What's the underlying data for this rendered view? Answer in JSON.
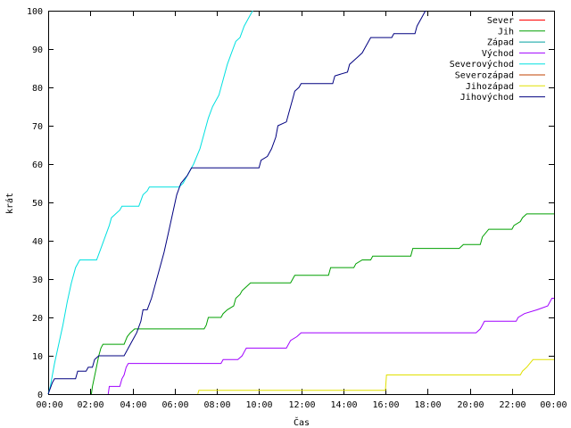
{
  "chart_data": {
    "type": "line",
    "title": "",
    "xlabel": "Čas",
    "ylabel": "krát",
    "xlim": [
      0,
      24
    ],
    "ylim": [
      0,
      100
    ],
    "x_tick_labels": [
      "00:00",
      "02:00",
      "04:00",
      "06:00",
      "08:00",
      "10:00",
      "12:00",
      "14:00",
      "16:00",
      "18:00",
      "20:00",
      "22:00",
      "00:00"
    ],
    "y_ticks": [
      0,
      10,
      20,
      30,
      40,
      50,
      60,
      70,
      80,
      90,
      100
    ],
    "grid": false,
    "legend_position": "top-right",
    "series": [
      {
        "name": "Sever",
        "color": "#ff0000",
        "points": []
      },
      {
        "name": "Jih",
        "color": "#00a000",
        "points": [
          [
            2.05,
            0
          ],
          [
            2.1,
            2
          ],
          [
            2.25,
            6
          ],
          [
            2.4,
            10
          ],
          [
            2.5,
            12
          ],
          [
            2.6,
            13
          ],
          [
            3.6,
            13
          ],
          [
            3.75,
            15
          ],
          [
            3.9,
            16
          ],
          [
            4.1,
            17
          ],
          [
            7.4,
            17
          ],
          [
            7.5,
            18
          ],
          [
            7.6,
            20
          ],
          [
            8.2,
            20
          ],
          [
            8.3,
            21
          ],
          [
            8.5,
            22
          ],
          [
            8.8,
            23
          ],
          [
            8.9,
            25
          ],
          [
            9.1,
            26
          ],
          [
            9.2,
            27
          ],
          [
            9.4,
            28
          ],
          [
            9.6,
            29
          ],
          [
            11.5,
            29
          ],
          [
            11.7,
            31
          ],
          [
            13.3,
            31
          ],
          [
            13.4,
            33
          ],
          [
            14.5,
            33
          ],
          [
            14.6,
            34
          ],
          [
            14.9,
            35
          ],
          [
            15.3,
            35
          ],
          [
            15.4,
            36
          ],
          [
            17.2,
            36
          ],
          [
            17.3,
            38
          ],
          [
            19.5,
            38
          ],
          [
            19.7,
            39
          ],
          [
            20.5,
            39
          ],
          [
            20.6,
            41
          ],
          [
            20.9,
            43
          ],
          [
            22.0,
            43
          ],
          [
            22.1,
            44
          ],
          [
            22.4,
            45
          ],
          [
            22.5,
            46
          ],
          [
            22.7,
            47
          ],
          [
            24,
            47
          ]
        ]
      },
      {
        "name": "Západ",
        "color": "#00a0a0",
        "points": []
      },
      {
        "name": "Východ",
        "color": "#a000ff",
        "points": [
          [
            2.85,
            0
          ],
          [
            2.9,
            2
          ],
          [
            3.4,
            2
          ],
          [
            3.5,
            4
          ],
          [
            3.6,
            5
          ],
          [
            3.7,
            7
          ],
          [
            3.8,
            8
          ],
          [
            8.2,
            8
          ],
          [
            8.3,
            9
          ],
          [
            9.0,
            9
          ],
          [
            9.2,
            10
          ],
          [
            9.3,
            11
          ],
          [
            9.4,
            12
          ],
          [
            11.3,
            12
          ],
          [
            11.5,
            14
          ],
          [
            11.8,
            15
          ],
          [
            12.0,
            16
          ],
          [
            20.3,
            16
          ],
          [
            20.5,
            17
          ],
          [
            20.6,
            18
          ],
          [
            20.7,
            19
          ],
          [
            22.2,
            19
          ],
          [
            22.3,
            20
          ],
          [
            22.6,
            21
          ],
          [
            23.2,
            22
          ],
          [
            23.7,
            23
          ],
          [
            23.9,
            25
          ],
          [
            24,
            25
          ]
        ]
      },
      {
        "name": "Severovýchod",
        "color": "#00e0e0",
        "points": [
          [
            0,
            0
          ],
          [
            0.1,
            2
          ],
          [
            0.3,
            8
          ],
          [
            0.5,
            13
          ],
          [
            0.7,
            18
          ],
          [
            0.9,
            24
          ],
          [
            1.1,
            29
          ],
          [
            1.3,
            33
          ],
          [
            1.5,
            35
          ],
          [
            2.3,
            35
          ],
          [
            2.5,
            38
          ],
          [
            2.7,
            41
          ],
          [
            2.9,
            44
          ],
          [
            3.0,
            46
          ],
          [
            3.2,
            47
          ],
          [
            3.4,
            48
          ],
          [
            3.5,
            49
          ],
          [
            4.3,
            49
          ],
          [
            4.5,
            52
          ],
          [
            4.7,
            53
          ],
          [
            4.8,
            54
          ],
          [
            6.2,
            54
          ],
          [
            6.4,
            55
          ],
          [
            6.6,
            57
          ],
          [
            6.9,
            60
          ],
          [
            7.2,
            64
          ],
          [
            7.4,
            68
          ],
          [
            7.6,
            72
          ],
          [
            7.8,
            75
          ],
          [
            8.1,
            78
          ],
          [
            8.3,
            82
          ],
          [
            8.5,
            86
          ],
          [
            8.7,
            89
          ],
          [
            8.9,
            92
          ],
          [
            9.1,
            93
          ],
          [
            9.3,
            96
          ],
          [
            9.5,
            98
          ],
          [
            9.7,
            100
          ]
        ]
      },
      {
        "name": "Severozápad",
        "color": "#c04000",
        "points": []
      },
      {
        "name": "Jihozápad",
        "color": "#e0e000",
        "points": [
          [
            7.1,
            0
          ],
          [
            7.15,
            1
          ],
          [
            16.0,
            1
          ],
          [
            16.05,
            5
          ],
          [
            22.4,
            5
          ],
          [
            22.5,
            6
          ],
          [
            22.7,
            7
          ],
          [
            23.0,
            9
          ],
          [
            24,
            9
          ]
        ]
      },
      {
        "name": "Jihovýchod",
        "color": "#000080",
        "points": [
          [
            0,
            0
          ],
          [
            0.2,
            3
          ],
          [
            0.3,
            4
          ],
          [
            1.3,
            4
          ],
          [
            1.4,
            6
          ],
          [
            1.8,
            6
          ],
          [
            1.9,
            7
          ],
          [
            2.1,
            7
          ],
          [
            2.2,
            9
          ],
          [
            2.4,
            10
          ],
          [
            3.6,
            10
          ],
          [
            3.8,
            12
          ],
          [
            4.0,
            14
          ],
          [
            4.2,
            16
          ],
          [
            4.4,
            19
          ],
          [
            4.5,
            22
          ],
          [
            4.7,
            22
          ],
          [
            4.9,
            25
          ],
          [
            5.1,
            29
          ],
          [
            5.3,
            33
          ],
          [
            5.5,
            37
          ],
          [
            5.7,
            42
          ],
          [
            5.9,
            47
          ],
          [
            6.1,
            52
          ],
          [
            6.3,
            55
          ],
          [
            6.6,
            57
          ],
          [
            6.8,
            59
          ],
          [
            10.0,
            59
          ],
          [
            10.1,
            61
          ],
          [
            10.4,
            62
          ],
          [
            10.6,
            64
          ],
          [
            10.8,
            67
          ],
          [
            10.9,
            70
          ],
          [
            11.3,
            71
          ],
          [
            11.4,
            73
          ],
          [
            11.5,
            75
          ],
          [
            11.6,
            77
          ],
          [
            11.7,
            79
          ],
          [
            11.9,
            80
          ],
          [
            12.0,
            81
          ],
          [
            13.5,
            81
          ],
          [
            13.6,
            83
          ],
          [
            14.2,
            84
          ],
          [
            14.3,
            86
          ],
          [
            14.5,
            87
          ],
          [
            14.7,
            88
          ],
          [
            14.9,
            89
          ],
          [
            15.1,
            91
          ],
          [
            15.3,
            93
          ],
          [
            16.3,
            93
          ],
          [
            16.4,
            94
          ],
          [
            17.4,
            94
          ],
          [
            17.5,
            96
          ],
          [
            17.7,
            98
          ],
          [
            17.9,
            100
          ]
        ]
      }
    ]
  }
}
